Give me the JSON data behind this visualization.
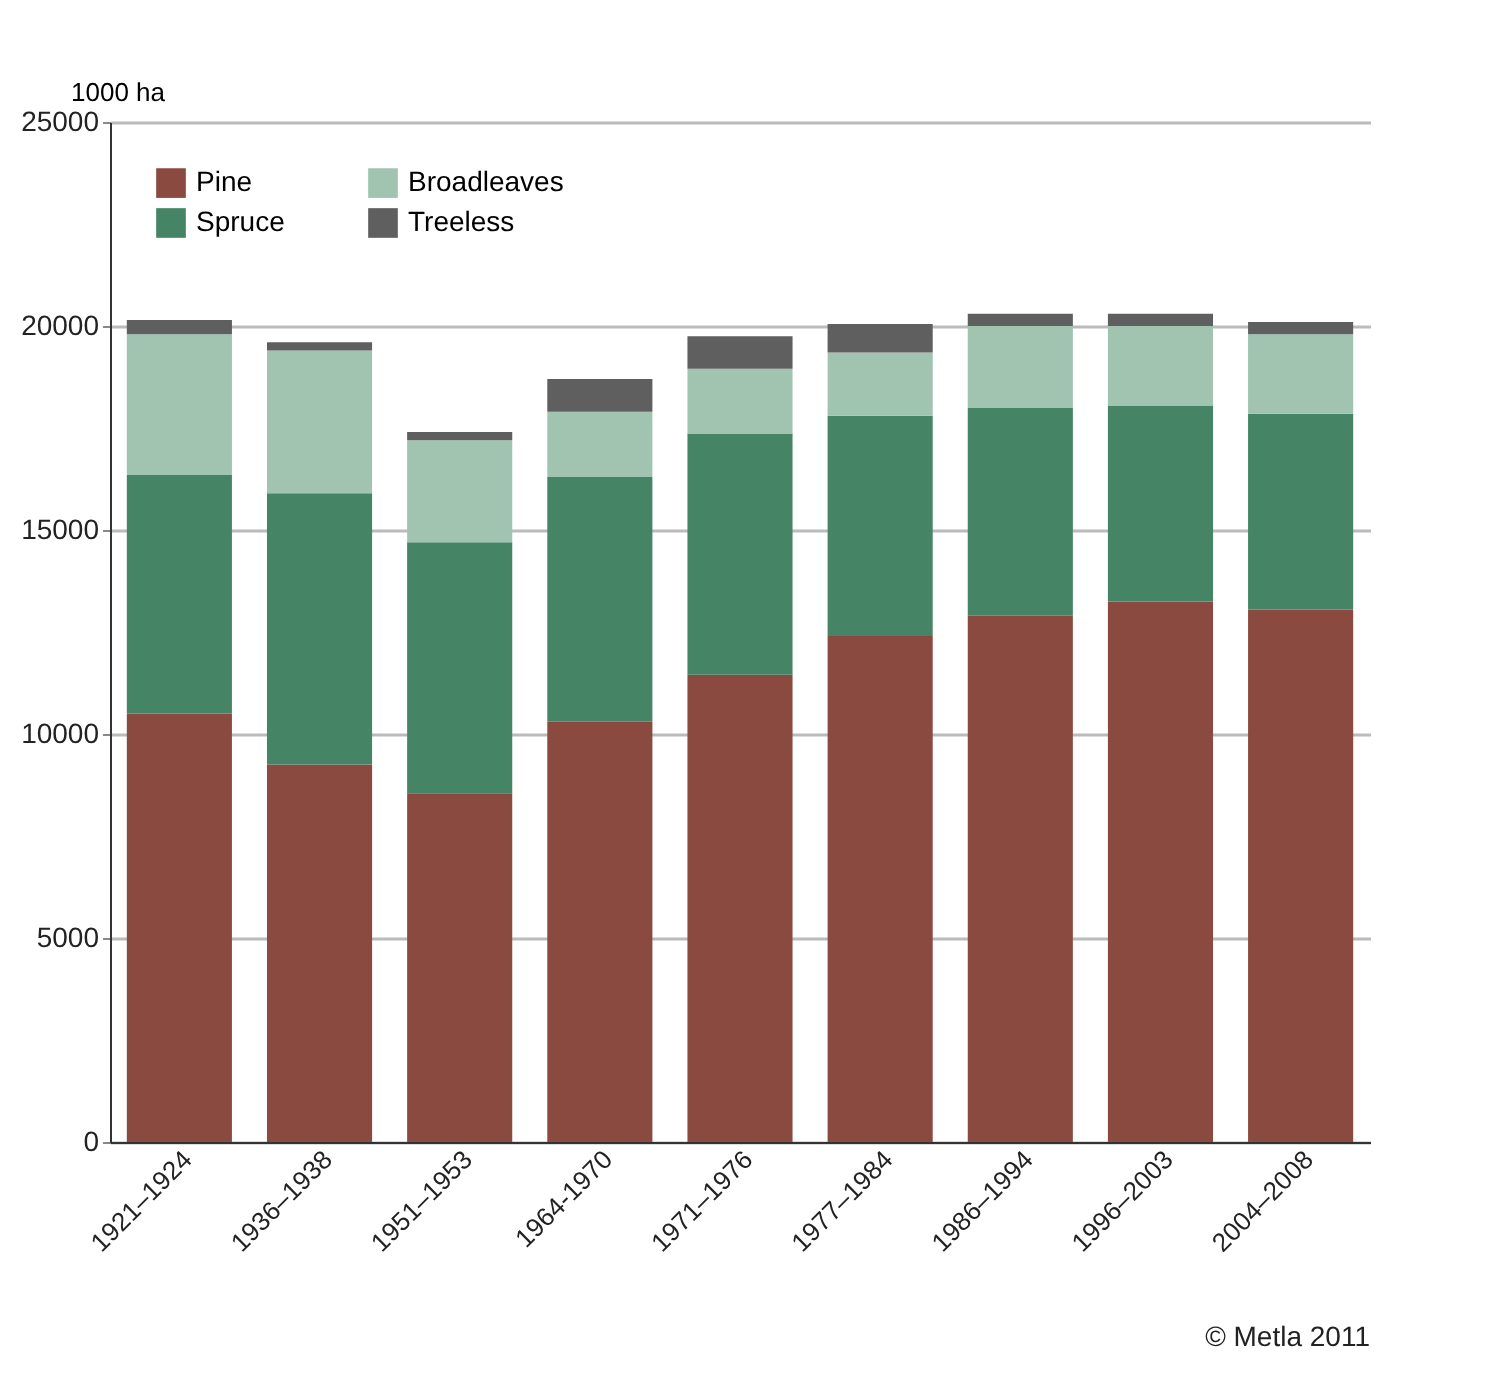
{
  "chart_data": {
    "type": "bar",
    "stacked": true,
    "ylabel": "1000 ha",
    "categories": [
      "1921–1924",
      "1936–1938",
      "1951–1953",
      "1964-1970",
      "1971–1976",
      "1977–1984",
      "1986–1994",
      "1996–2003",
      "2004–2008"
    ],
    "series": [
      {
        "name": "Pine",
        "color": "#8b4a40",
        "values": [
          10500,
          9250,
          8550,
          10300,
          11450,
          12400,
          12900,
          13250,
          13050
        ]
      },
      {
        "name": "Spruce",
        "color": "#458565",
        "values": [
          5850,
          6650,
          6150,
          6000,
          5900,
          5400,
          5100,
          4800,
          4800
        ]
      },
      {
        "name": "Broadleaves",
        "color": "#a0c4b0",
        "values": [
          3450,
          3500,
          2500,
          1600,
          1600,
          1550,
          2000,
          1950,
          1950
        ]
      },
      {
        "name": "Treeless",
        "color": "#5f5f5f",
        "values": [
          350,
          200,
          200,
          800,
          800,
          700,
          300,
          300,
          300
        ]
      }
    ],
    "ylim": [
      0,
      25000
    ],
    "yticks": [
      0,
      5000,
      10000,
      15000,
      20000,
      25000
    ],
    "grid": "y",
    "legend": "top left",
    "annotations": [
      "© Metla 2011"
    ]
  }
}
